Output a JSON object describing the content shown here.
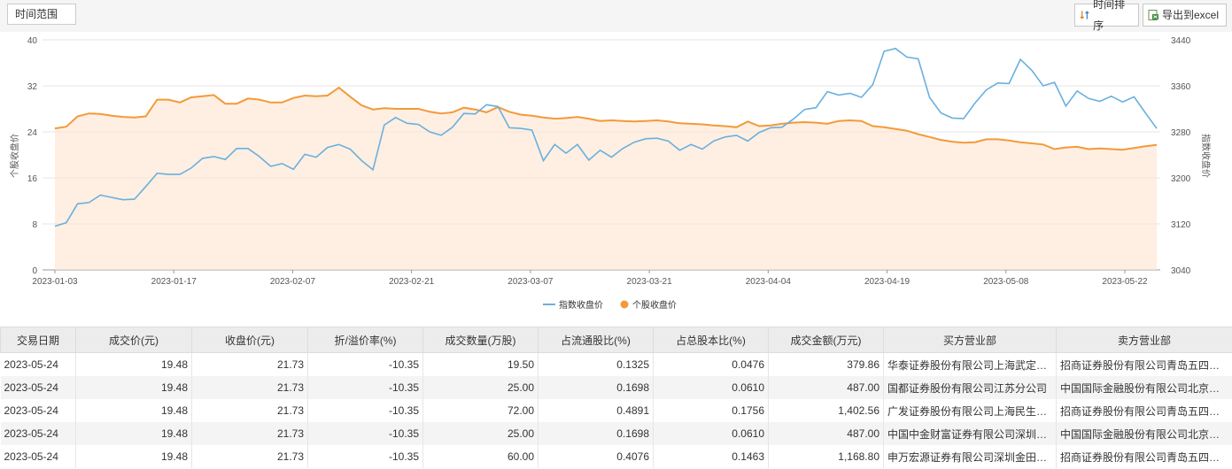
{
  "toolbar": {
    "range_label": "时间范围",
    "sort_label": "时间排序",
    "export_label": "导出到excel"
  },
  "chart_data": {
    "type": "line",
    "x_ticks": [
      "2023-01-03",
      "2023-01-17",
      "2023-02-07",
      "2023-02-21",
      "2023-03-07",
      "2023-03-21",
      "2023-04-04",
      "2023-04-19",
      "2023-05-08",
      "2023-05-22"
    ],
    "yleft": {
      "label": "个股收盘价",
      "ticks": [
        0,
        8,
        16,
        24,
        32,
        40
      ],
      "range": [
        0,
        40
      ]
    },
    "yright": {
      "label": "指数收盘价",
      "ticks": [
        3040,
        3120,
        3200,
        3280,
        3360,
        3440
      ],
      "range": [
        3040,
        3440
      ]
    },
    "grid": true,
    "legend_position": "bottom",
    "series": [
      {
        "name": "指数收盘价",
        "axis": "right",
        "color": "#6ab0de",
        "values": [
          3116,
          3122,
          3155,
          3157,
          3170,
          3166,
          3162,
          3163,
          3185,
          3208,
          3206,
          3206,
          3217,
          3234,
          3237,
          3232,
          3251,
          3251,
          3237,
          3220,
          3225,
          3215,
          3241,
          3236,
          3253,
          3258,
          3250,
          3230,
          3214,
          3292,
          3305,
          3295,
          3293,
          3280,
          3274,
          3288,
          3312,
          3311,
          3327,
          3324,
          3287,
          3286,
          3283,
          3230,
          3258,
          3243,
          3258,
          3231,
          3248,
          3236,
          3251,
          3262,
          3268,
          3269,
          3264,
          3248,
          3258,
          3250,
          3264,
          3271,
          3274,
          3264,
          3279,
          3287,
          3288,
          3302,
          3319,
          3322,
          3350,
          3344,
          3347,
          3340,
          3362,
          3420,
          3425,
          3410,
          3407,
          3340,
          3313,
          3304,
          3303,
          3330,
          3353,
          3365,
          3364,
          3406,
          3387,
          3360,
          3366,
          3325,
          3351,
          3338,
          3333,
          3342,
          3332,
          3341,
          3313,
          3286
        ]
      },
      {
        "name": "个股收盘价",
        "axis": "left",
        "color": "#f39a3a",
        "values": [
          24.6,
          24.9,
          26.7,
          27.2,
          27.1,
          26.8,
          26.6,
          26.5,
          26.7,
          29.6,
          29.6,
          29.1,
          30.0,
          30.2,
          30.4,
          28.9,
          28.9,
          29.8,
          29.6,
          29.1,
          29.1,
          29.9,
          30.3,
          30.2,
          30.3,
          31.7,
          30.1,
          28.6,
          27.9,
          28.1,
          28.0,
          28.0,
          28.0,
          27.5,
          27.2,
          27.4,
          28.2,
          27.9,
          27.4,
          28.3,
          27.5,
          27.0,
          26.8,
          26.5,
          26.3,
          26.4,
          26.6,
          26.3,
          25.9,
          26.0,
          25.9,
          25.8,
          25.9,
          26.0,
          25.8,
          25.5,
          25.4,
          25.3,
          25.1,
          25.0,
          24.8,
          25.8,
          25.0,
          25.1,
          25.4,
          25.6,
          25.7,
          25.6,
          25.4,
          25.9,
          26.0,
          25.9,
          25.0,
          24.8,
          24.5,
          24.2,
          23.6,
          23.1,
          22.6,
          22.3,
          22.1,
          22.2,
          22.7,
          22.7,
          22.5,
          22.2,
          22.0,
          21.8,
          21.0,
          21.3,
          21.4,
          21.0,
          21.1,
          21.0,
          20.9,
          21.2,
          21.5,
          21.73
        ]
      }
    ]
  },
  "table": {
    "headers": [
      "交易日期",
      "成交价(元)",
      "收盘价(元)",
      "折/溢价率(%)",
      "成交数量(万股)",
      "占流通股比(%)",
      "占总股本比(%)",
      "成交金额(万元)",
      "买方营业部",
      "卖方营业部"
    ],
    "rows": [
      [
        "2023-05-24",
        "19.48",
        "21.73",
        "-10.35",
        "19.50",
        "0.1325",
        "0.0476",
        "379.86",
        "华泰证券股份有限公司上海武定…",
        "招商证券股份有限公司青岛五四…"
      ],
      [
        "2023-05-24",
        "19.48",
        "21.73",
        "-10.35",
        "25.00",
        "0.1698",
        "0.0610",
        "487.00",
        "国都证券股份有限公司江苏分公司",
        "中国国际金融股份有限公司北京…"
      ],
      [
        "2023-05-24",
        "19.48",
        "21.73",
        "-10.35",
        "72.00",
        "0.4891",
        "0.1756",
        "1,402.56",
        "广发证券股份有限公司上海民生…",
        "招商证券股份有限公司青岛五四…"
      ],
      [
        "2023-05-24",
        "19.48",
        "21.73",
        "-10.35",
        "25.00",
        "0.1698",
        "0.0610",
        "487.00",
        "中国中金财富证券有限公司深圳…",
        "中国国际金融股份有限公司北京…"
      ],
      [
        "2023-05-24",
        "19.48",
        "21.73",
        "-10.35",
        "60.00",
        "0.4076",
        "0.1463",
        "1,168.80",
        "申万宏源证券有限公司深圳金田…",
        "招商证券股份有限公司青岛五四…"
      ]
    ]
  }
}
